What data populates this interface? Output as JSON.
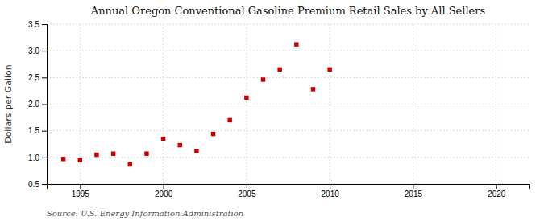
{
  "chart_data": {
    "type": "scatter",
    "title": "Annual Oregon Conventional Gasoline Premium Retail Sales by All Sellers",
    "ylabel": "Dollars per Gallon",
    "source": "Source: U.S. Energy Information Administration",
    "x": [
      1994,
      1995,
      1996,
      1997,
      1998,
      1999,
      2000,
      2001,
      2002,
      2003,
      2004,
      2005,
      2006,
      2007,
      2008,
      2009,
      2010
    ],
    "values": [
      0.97,
      0.95,
      1.05,
      1.07,
      0.87,
      1.07,
      1.35,
      1.23,
      1.12,
      1.44,
      1.7,
      2.12,
      2.46,
      2.65,
      3.12,
      2.28,
      2.65
    ],
    "color": "#cc0000",
    "marker": "square",
    "xlim": [
      1993,
      2022
    ],
    "ylim": [
      0.5,
      3.5
    ],
    "xticks": [
      1995,
      2000,
      2005,
      2010,
      2015,
      2020
    ],
    "yticks": [
      0.5,
      {
        "value": 1.0,
        "label": "1.0"
      },
      1.5,
      {
        "value": 2.0,
        "label": "2.0"
      },
      2.5,
      {
        "value": 3.0,
        "label": "3.0"
      },
      3.5
    ],
    "grid": true
  }
}
